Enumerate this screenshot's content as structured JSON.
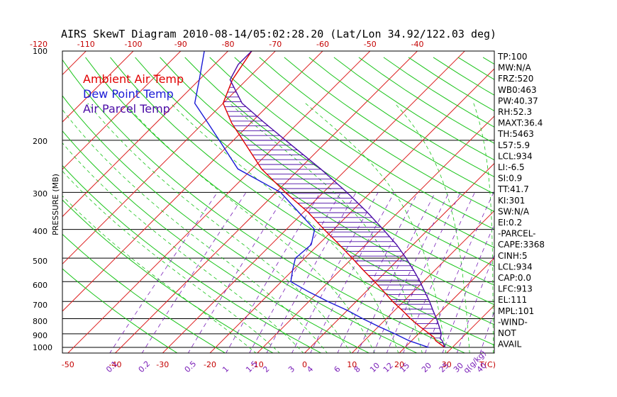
{
  "page": {
    "title": "AIRS SkewT Diagram 2010-08-14/05:02:28.20 (Lat/Lon 34.92/122.03 deg)"
  },
  "colors": {
    "ambient": "#e00000",
    "dewpoint": "#1a1ad6",
    "parcel": "#4b0ca6",
    "isotherm": "#dd2222",
    "dry_adiabat": "#19c419",
    "mixing_ratio": "#7a1fb8",
    "isobar": "#000000",
    "tick_label": "#c40000"
  },
  "legend": [
    {
      "label": "Ambient Air Temp",
      "color": "#e00000"
    },
    {
      "label": "Dew Point Temp",
      "color": "#1a1ad6"
    },
    {
      "label": "Air Parcel Temp",
      "color": "#4b0ca6"
    }
  ],
  "indices": [
    "TP:100",
    "MW:N/A",
    "FRZ:520",
    "WB0:463",
    "PW:40.37",
    "RH:52.3",
    "MAXT:36.4",
    "TH:5463",
    "L57:5.9",
    "LCL:934",
    "LI:-6.5",
    "SI:0.9",
    "TT:41.7",
    "KI:301",
    "SW:N/A",
    "EI:0.2",
    "-PARCEL-",
    "CAPE:3368",
    "CINH:5",
    "LCL:934",
    "CAP:0.0",
    "LFC:913",
    "EL:111",
    "MPL:101",
    "-WIND-",
    "NOT",
    "AVAIL"
  ],
  "chart_data": {
    "type": "line",
    "title": "AIRS SkewT Diagram 2010-08-14/05:02:28.20 (Lat/Lon 34.92/122.03 deg)",
    "ylabel": "PRESSURE (MB)",
    "xlabel": "T(C)",
    "mixing_ratio_label": "q(g/kg)",
    "pressure_range": [
      1000,
      100
    ],
    "pressure_ticks": [
      100,
      200,
      300,
      400,
      500,
      600,
      700,
      800,
      900,
      1000
    ],
    "top_temp_ticks": [
      "-120",
      "-110",
      "-100",
      "-90",
      "-80",
      "-70",
      "-60",
      "-50",
      "-40"
    ],
    "bottom_temp_ticks": [
      "-50",
      "-40",
      "-30",
      "-20",
      "-10",
      "0",
      "10",
      "20",
      "30"
    ],
    "mixing_ratio_ticks": [
      "0.1",
      "0.2",
      "0.5",
      "1",
      "1.5",
      "2",
      "3",
      "4",
      "6",
      "8",
      "10",
      "12",
      "15",
      "20",
      "25",
      "30",
      "40"
    ],
    "series": [
      {
        "name": "Ambient Air Temp",
        "points": [
          [
            1000,
            28.4
          ],
          [
            950,
            25.1
          ],
          [
            925,
            24.0
          ],
          [
            900,
            22.3
          ],
          [
            850,
            18.7
          ],
          [
            800,
            15.1
          ],
          [
            750,
            11.6
          ],
          [
            700,
            7.7
          ],
          [
            650,
            3.9
          ],
          [
            600,
            -0.3
          ],
          [
            550,
            -5.0
          ],
          [
            500,
            -10.0
          ],
          [
            450,
            -15.6
          ],
          [
            400,
            -22.0
          ],
          [
            350,
            -29.0
          ],
          [
            300,
            -38.0
          ],
          [
            250,
            -48.0
          ],
          [
            200,
            -58.0
          ],
          [
            175,
            -64.0
          ],
          [
            150,
            -70.0
          ],
          [
            125,
            -73.0
          ],
          [
            100,
            -75.0
          ]
        ]
      },
      {
        "name": "Dew Point Temp",
        "points": [
          [
            1000,
            25.0
          ],
          [
            950,
            19.5
          ],
          [
            900,
            15.0
          ],
          [
            850,
            10.0
          ],
          [
            800,
            5.0
          ],
          [
            750,
            0.0
          ],
          [
            700,
            -6.0
          ],
          [
            650,
            -12.0
          ],
          [
            600,
            -18.0
          ],
          [
            550,
            -20.0
          ],
          [
            500,
            -22.0
          ],
          [
            450,
            -21.5
          ],
          [
            400,
            -24.0
          ],
          [
            350,
            -31.0
          ],
          [
            300,
            -39.0
          ],
          [
            250,
            -53.0
          ],
          [
            200,
            -63.0
          ],
          [
            175,
            -69.0
          ],
          [
            150,
            -76.0
          ],
          [
            125,
            -80.0
          ],
          [
            100,
            -85.0
          ]
        ]
      },
      {
        "name": "Air Parcel Temp",
        "points": [
          [
            1000,
            28.4
          ],
          [
            950,
            26.5
          ],
          [
            934,
            25.6
          ],
          [
            900,
            24.8
          ],
          [
            850,
            22.8
          ],
          [
            800,
            20.6
          ],
          [
            750,
            18.1
          ],
          [
            700,
            15.5
          ],
          [
            650,
            12.5
          ],
          [
            600,
            9.3
          ],
          [
            550,
            5.6
          ],
          [
            500,
            1.4
          ],
          [
            450,
            -3.5
          ],
          [
            400,
            -9.5
          ],
          [
            350,
            -16.5
          ],
          [
            300,
            -25.0
          ],
          [
            250,
            -35.5
          ],
          [
            200,
            -49.0
          ],
          [
            175,
            -57.0
          ],
          [
            150,
            -66.0
          ],
          [
            125,
            -73.5
          ],
          [
            111,
            -75.0
          ],
          [
            100,
            -75.0
          ]
        ]
      }
    ]
  }
}
